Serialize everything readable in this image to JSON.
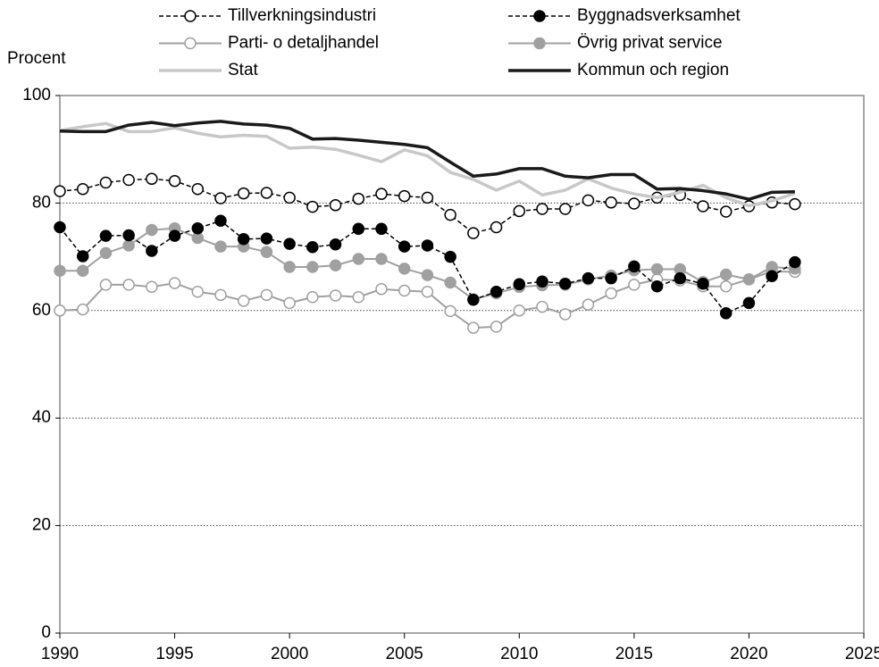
{
  "chart_data": {
    "type": "line",
    "ylabel": "Procent",
    "x": [
      1990,
      1991,
      1992,
      1993,
      1994,
      1995,
      1996,
      1997,
      1998,
      1999,
      2000,
      2001,
      2002,
      2003,
      2004,
      2005,
      2006,
      2007,
      2008,
      2009,
      2010,
      2011,
      2012,
      2013,
      2014,
      2015,
      2016,
      2017,
      2018,
      2019,
      2020,
      2021,
      2022
    ],
    "xlim": [
      1990,
      2025
    ],
    "xticks": [
      1990,
      1995,
      2000,
      2005,
      2010,
      2015,
      2020,
      2025
    ],
    "ylim": [
      0,
      100
    ],
    "yticks": [
      0,
      20,
      40,
      60,
      80,
      100
    ],
    "grid": true,
    "legend": "top",
    "series": [
      {
        "name": "Tillverkningsindustri",
        "color": "#000000",
        "dash": "dashed",
        "marker": "open",
        "width": 1.5,
        "values": [
          82.2,
          82.6,
          83.8,
          84.3,
          84.5,
          84.1,
          82.6,
          80.9,
          81.8,
          81.9,
          81.0,
          79.3,
          79.6,
          80.8,
          81.7,
          81.3,
          81.0,
          77.8,
          74.4,
          75.5,
          78.5,
          78.9,
          78.9,
          80.5,
          80.1,
          79.9,
          81.0,
          81.5,
          79.4,
          78.4,
          79.4,
          80.1,
          79.8
        ]
      },
      {
        "name": "Byggnadsverksamhet",
        "color": "#000000",
        "dash": "dashed",
        "marker": "filled",
        "width": 1.5,
        "values": [
          75.5,
          70.1,
          73.9,
          74.0,
          71.1,
          73.9,
          75.3,
          76.7,
          73.3,
          73.4,
          72.4,
          71.8,
          72.3,
          75.2,
          75.2,
          71.9,
          72.1,
          70.0,
          62.0,
          63.5,
          64.9,
          65.4,
          65.0,
          66.0,
          66.0,
          68.2,
          64.5,
          66.0,
          65.0,
          59.5,
          61.4,
          66.4,
          69.0
        ]
      },
      {
        "name": "Parti- o detaljhandel",
        "color": "#a0a0a0",
        "dash": "solid",
        "marker": "open",
        "width": 2,
        "values": [
          60.0,
          60.2,
          64.8,
          64.8,
          64.4,
          65.1,
          63.5,
          62.9,
          61.8,
          62.9,
          61.4,
          62.5,
          62.8,
          62.5,
          64.0,
          63.7,
          63.5,
          59.9,
          56.8,
          57.0,
          60.0,
          60.7,
          59.3,
          61.1,
          63.2,
          64.8,
          65.8,
          65.6,
          64.5,
          64.5,
          65.8,
          67.3,
          67.2
        ]
      },
      {
        "name": "Övrig privat service",
        "color": "#a0a0a0",
        "dash": "solid",
        "marker": "filled",
        "width": 2,
        "values": [
          67.4,
          67.4,
          70.7,
          72.1,
          75.0,
          75.3,
          73.5,
          71.9,
          71.9,
          70.9,
          68.1,
          68.1,
          68.4,
          69.6,
          69.6,
          67.8,
          66.6,
          65.2,
          62.1,
          63.2,
          64.4,
          64.7,
          64.8,
          65.8,
          66.5,
          67.5,
          67.7,
          67.7,
          65.3,
          66.7,
          65.8,
          68.1,
          67.8
        ]
      },
      {
        "name": "Stat",
        "color": "#c8c8c8",
        "dash": "solid",
        "marker": "none",
        "width": 3.5,
        "values": [
          93.5,
          94.2,
          94.8,
          93.3,
          93.3,
          94.0,
          93.0,
          92.3,
          92.6,
          92.4,
          90.2,
          90.4,
          90.0,
          88.9,
          87.7,
          89.9,
          88.8,
          85.7,
          84.4,
          82.4,
          84.1,
          81.5,
          82.4,
          84.5,
          82.8,
          81.7,
          81.0,
          82.0,
          83.3,
          81.0,
          79.5,
          80.4,
          81.8
        ]
      },
      {
        "name": "Kommun och region",
        "color": "#1a1a1a",
        "dash": "solid",
        "marker": "none",
        "width": 3.5,
        "values": [
          93.4,
          93.3,
          93.3,
          94.5,
          95.0,
          94.4,
          94.9,
          95.2,
          94.7,
          94.5,
          93.9,
          91.9,
          92.0,
          91.7,
          91.3,
          90.9,
          90.3,
          87.6,
          85.0,
          85.4,
          86.4,
          86.4,
          85.0,
          84.7,
          85.3,
          85.3,
          82.6,
          82.7,
          82.3,
          81.7,
          80.7,
          82.0,
          82.1
        ]
      }
    ]
  }
}
